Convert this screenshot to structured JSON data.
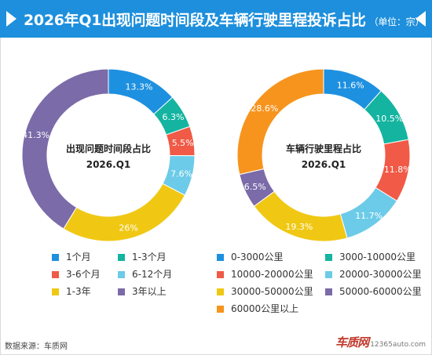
{
  "header": {
    "title": "2026年Q1出现问题时间段及车辆行驶里程投诉占比",
    "unit": "（单位：宗）"
  },
  "colors": {
    "header_bg": "#1d8fdc",
    "blue": "#1e90e0",
    "teal": "#14b4a0",
    "red": "#f05a46",
    "light_blue": "#6ccbe8",
    "yellow": "#f0c814",
    "purple": "#7b6ba8",
    "orange": "#f7941d"
  },
  "chart_data": [
    {
      "type": "pie",
      "center_line1": "出现问题时间段占比",
      "center_line2": "2026.Q1",
      "categories": [
        "1个月",
        "1-3个月",
        "3-6个月",
        "6-12个月",
        "1-3年",
        "3年以上"
      ],
      "values": [
        13.3,
        6.3,
        5.5,
        7.6,
        26.0,
        41.3
      ],
      "labels": [
        "13.3%",
        "6.3%",
        "5.5%",
        "7.6%",
        "26%",
        "41.3%"
      ],
      "colors": [
        "#1e90e0",
        "#14b4a0",
        "#f05a46",
        "#6ccbe8",
        "#f0c814",
        "#7b6ba8"
      ]
    },
    {
      "type": "pie",
      "center_line1": "车辆行驶里程占比",
      "center_line2": "2026.Q1",
      "categories": [
        "0-3000公里",
        "3000-10000公里",
        "10000-20000公里",
        "20000-30000公里",
        "30000-50000公里",
        "50000-60000公里",
        "60000公里以上"
      ],
      "values": [
        11.6,
        10.5,
        11.8,
        11.7,
        19.3,
        6.5,
        28.6
      ],
      "labels": [
        "11.6%",
        "10.5%",
        "11.8%",
        "11.7%",
        "19.3%",
        "6.5%",
        "28.6%"
      ],
      "colors": [
        "#1e90e0",
        "#14b4a0",
        "#f05a46",
        "#6ccbe8",
        "#f0c814",
        "#7b6ba8",
        "#f7941d"
      ]
    }
  ],
  "footer": {
    "source": "数据来源：车质网",
    "logo_main": "车质网",
    "logo_sub": "12365auto.com"
  }
}
